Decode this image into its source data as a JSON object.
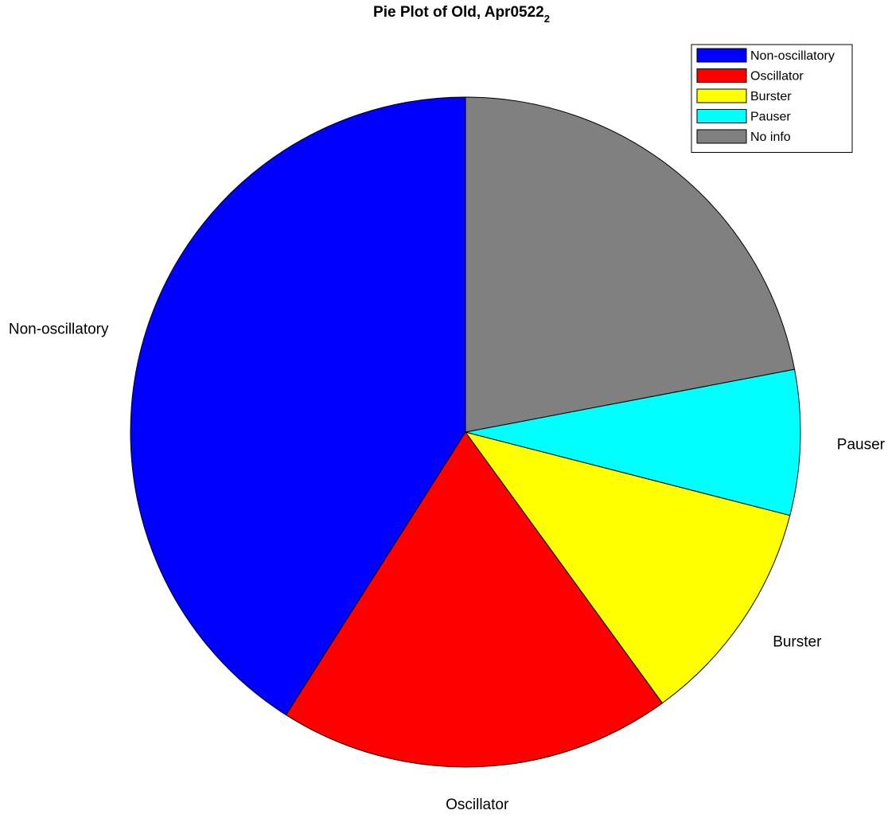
{
  "chart_data": {
    "type": "pie",
    "title": "Pie Plot of Old, Apr0522",
    "title_subscript": "2",
    "categories": [
      "Non-oscillatory",
      "Oscillator",
      "Burster",
      "Pauser",
      "No info"
    ],
    "values": [
      41,
      19,
      11,
      7,
      22
    ],
    "unit": "percent",
    "colors": [
      "#0000ff",
      "#ff0000",
      "#ffff00",
      "#00ffff",
      "#808080"
    ],
    "start_angle_deg": 90,
    "direction": "counterclockwise",
    "legend": {
      "position": "top-right",
      "entries": [
        "Non-oscillatory",
        "Oscillator",
        "Burster",
        "Pauser",
        "No info"
      ]
    },
    "slice_labels": [
      "Non-oscillatory",
      "Oscillator",
      "Burster",
      "Pauser",
      ""
    ]
  }
}
